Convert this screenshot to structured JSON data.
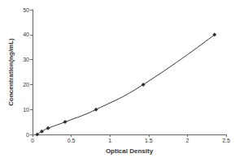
{
  "chart_data": {
    "type": "line",
    "x": [
      0.06,
      0.12,
      0.2,
      0.42,
      0.82,
      1.43,
      2.35
    ],
    "values": [
      0,
      1.25,
      2.5,
      5,
      10,
      20,
      40
    ],
    "xlabel": "Optical Density",
    "ylabel": "Concentration(ng/mL)",
    "color": "#333333",
    "marker": "diamond",
    "line_style": "solid",
    "xlim": [
      0,
      2.5
    ],
    "xticks": [
      0,
      0.5,
      1,
      1.5,
      2,
      2.5
    ],
    "ylim": [
      0,
      50
    ],
    "yticks": [
      0,
      10,
      20,
      30,
      40,
      50
    ],
    "grid": false
  }
}
